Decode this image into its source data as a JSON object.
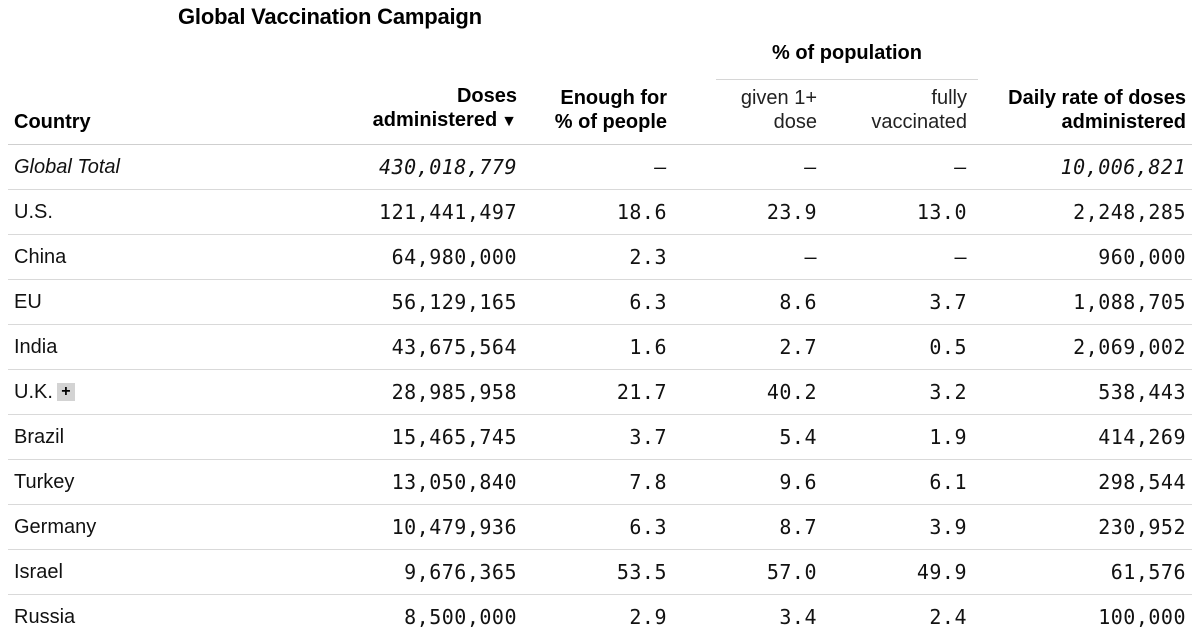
{
  "chart_data": {
    "type": "table",
    "title": "Global Vaccination Campaign",
    "group_header": "% of population",
    "columns": {
      "country": "Country",
      "doses_line1": "Doses",
      "doses_line2": "administered",
      "doses_sort_icon": "▼",
      "enough_line1": "Enough for",
      "enough_line2": "% of people",
      "given_line1": "given 1+",
      "given_line2": "dose",
      "fully_line1": "fully",
      "fully_line2": "vaccinated",
      "daily_line1": "Daily rate of doses",
      "daily_line2": "administered"
    },
    "total": {
      "country": "Global Total",
      "doses": "430,018,779",
      "enough": "–",
      "given": "–",
      "fully": "–",
      "daily": "10,006,821"
    },
    "rows": [
      {
        "country": "U.S.",
        "doses": "121,441,497",
        "enough": "18.6",
        "given": "23.9",
        "fully": "13.0",
        "daily": "2,248,285"
      },
      {
        "country": "China",
        "doses": "64,980,000",
        "enough": "2.3",
        "given": "–",
        "fully": "–",
        "daily": "960,000"
      },
      {
        "country": "EU",
        "doses": "56,129,165",
        "enough": "6.3",
        "given": "8.6",
        "fully": "3.7",
        "daily": "1,088,705"
      },
      {
        "country": "India",
        "doses": "43,675,564",
        "enough": "1.6",
        "given": "2.7",
        "fully": "0.5",
        "daily": "2,069,002"
      },
      {
        "country": "U.K.",
        "badge": "+",
        "doses": "28,985,958",
        "enough": "21.7",
        "given": "40.2",
        "fully": "3.2",
        "daily": "538,443"
      },
      {
        "country": "Brazil",
        "doses": "15,465,745",
        "enough": "3.7",
        "given": "5.4",
        "fully": "1.9",
        "daily": "414,269"
      },
      {
        "country": "Turkey",
        "doses": "13,050,840",
        "enough": "7.8",
        "given": "9.6",
        "fully": "6.1",
        "daily": "298,544"
      },
      {
        "country": "Germany",
        "doses": "10,479,936",
        "enough": "6.3",
        "given": "8.7",
        "fully": "3.9",
        "daily": "230,952"
      },
      {
        "country": "Israel",
        "doses": "9,676,365",
        "enough": "53.5",
        "given": "57.0",
        "fully": "49.9",
        "daily": "61,576"
      },
      {
        "country": "Russia",
        "doses": "8,500,000",
        "enough": "2.9",
        "given": "3.4",
        "fully": "2.4",
        "daily": "100,000"
      }
    ]
  },
  "colors": {
    "text": "#000000",
    "rule": "#d9d9d9",
    "badge_bg": "#d3d3d3"
  }
}
